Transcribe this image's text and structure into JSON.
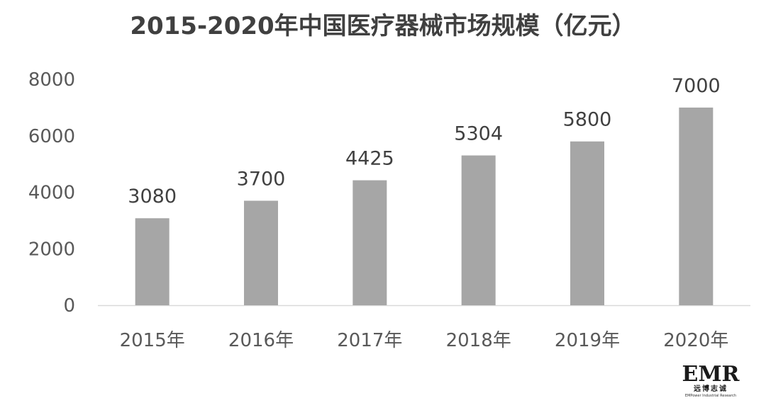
{
  "chart_data": {
    "type": "bar",
    "title": "2015-2020年中国医疗器械市场规模（亿元）",
    "categories": [
      "2015年",
      "2016年",
      "2017年",
      "2018年",
      "2019年",
      "2020年"
    ],
    "values": [
      3080,
      3700,
      4425,
      5304,
      5800,
      7000
    ],
    "data_labels": [
      "3080",
      "3700",
      "4425",
      "5304",
      "5800",
      "7000"
    ],
    "ylim": [
      0,
      8000
    ],
    "yticks": [
      0,
      2000,
      4000,
      6000,
      8000
    ],
    "xlabel": "",
    "ylabel": "",
    "grid": false,
    "legend": "none",
    "bar_color": "#a6a6a6",
    "axis_color": "#d9d9d9"
  },
  "logo": {
    "main": "EMR",
    "cn": "远博志诚",
    "en": "EMPower Industrial Research"
  }
}
